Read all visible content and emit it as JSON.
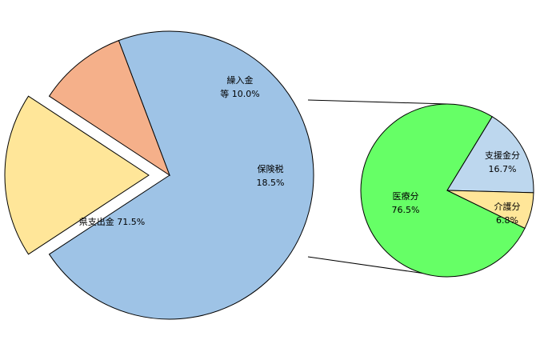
{
  "chart_data": [
    {
      "type": "pie",
      "slices": [
        {
          "name": "県支出金",
          "value": 71.5,
          "color": "#9ec3e6",
          "label_lines": [
            "県支出金 71.5%"
          ]
        },
        {
          "name": "繰入金等",
          "value": 10.0,
          "color": "#f5b08a",
          "label_lines": [
            "繰入金",
            "等 10.0%"
          ]
        },
        {
          "name": "保険税",
          "value": 18.5,
          "color": "#ffe699",
          "label_lines": [
            "保険税",
            "18.5%"
          ],
          "exploded": true
        }
      ]
    },
    {
      "type": "pie",
      "breakdown_of": "保険税",
      "slices": [
        {
          "name": "医療分",
          "value": 76.5,
          "color": "#66ff66",
          "label_lines": [
            "医療分",
            "76.5%"
          ]
        },
        {
          "name": "支援金分",
          "value": 16.7,
          "color": "#bdd7ee",
          "label_lines": [
            "支援金分",
            "16.7%"
          ]
        },
        {
          "name": "介護分",
          "value": 6.8,
          "color": "#ffe699",
          "label_lines": [
            "介護分",
            "6.8%"
          ]
        }
      ]
    }
  ]
}
